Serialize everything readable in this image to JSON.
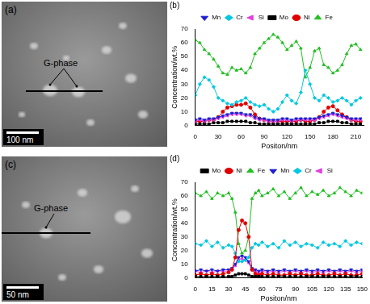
{
  "images": [
    {
      "label": "(a)",
      "annotation": "G-phase",
      "scale_bar": "100 nm"
    },
    {
      "label": "(c)",
      "annotation": "G-phase",
      "scale_bar": "50 nm"
    }
  ],
  "chart_data": [
    {
      "type": "line",
      "title": "(b)",
      "x_label": "Positon/nm",
      "y_label": "Concentration/wt.%",
      "xlim": [
        0,
        220
      ],
      "xticks": [
        0,
        30,
        60,
        90,
        120,
        150,
        180,
        210
      ],
      "ylim": [
        0,
        70
      ],
      "yticks": [
        0,
        10,
        20,
        30,
        40,
        50,
        60,
        70
      ],
      "legend": "top",
      "grid": false,
      "x": [
        0,
        6,
        12,
        18,
        24,
        30,
        36,
        42,
        48,
        54,
        60,
        66,
        72,
        78,
        84,
        90,
        96,
        102,
        108,
        114,
        120,
        126,
        132,
        138,
        144,
        150,
        156,
        162,
        168,
        174,
        180,
        186,
        192,
        198,
        204,
        210,
        216
      ],
      "series": [
        {
          "name": "Mn",
          "color": "#1f1fd0",
          "marker": "triangle-down",
          "values": [
            4,
            5,
            4,
            5,
            5,
            6,
            7,
            8,
            9,
            9,
            9,
            8,
            8,
            6,
            5,
            5,
            4,
            4,
            4,
            5,
            5,
            4,
            5,
            5,
            5,
            5,
            5,
            6,
            7,
            8,
            9,
            8,
            7,
            6,
            5,
            5,
            5
          ]
        },
        {
          "name": "Cr",
          "color": "#00c8e0",
          "marker": "diamond",
          "values": [
            22,
            30,
            35,
            33,
            28,
            20,
            18,
            16,
            15,
            17,
            18,
            20,
            17,
            15,
            14,
            15,
            12,
            10,
            12,
            17,
            22,
            18,
            16,
            24,
            40,
            30,
            20,
            18,
            22,
            20,
            17,
            18,
            20,
            18,
            15,
            18,
            20
          ]
        },
        {
          "name": "Si",
          "color": "#e040e0",
          "marker": "triangle-left",
          "values": [
            3,
            4,
            3,
            4,
            4,
            5,
            6,
            7,
            8,
            8,
            8,
            7,
            7,
            5,
            4,
            4,
            3,
            3,
            3,
            4,
            4,
            3,
            4,
            4,
            4,
            4,
            4,
            5,
            6,
            7,
            8,
            7,
            6,
            5,
            4,
            4,
            4
          ]
        },
        {
          "name": "Mo",
          "color": "#000000",
          "marker": "square",
          "values": [
            1,
            1,
            1,
            1,
            2,
            2,
            2,
            3,
            3,
            3,
            3,
            3,
            2,
            2,
            1,
            1,
            1,
            1,
            1,
            1,
            1,
            1,
            1,
            1,
            1,
            1,
            1,
            2,
            2,
            3,
            3,
            3,
            2,
            2,
            1,
            1,
            1
          ]
        },
        {
          "name": "Ni",
          "color": "#e00000",
          "marker": "circle",
          "values": [
            3,
            3,
            3,
            4,
            4,
            6,
            10,
            13,
            14,
            15,
            15,
            16,
            13,
            8,
            5,
            4,
            3,
            3,
            3,
            3,
            3,
            3,
            3,
            4,
            3,
            3,
            4,
            6,
            10,
            13,
            14,
            11,
            8,
            6,
            4,
            3,
            3
          ]
        },
        {
          "name": "Fe",
          "color": "#20c020",
          "marker": "triangle",
          "values": [
            62,
            60,
            55,
            52,
            48,
            43,
            38,
            37,
            42,
            40,
            41,
            38,
            42,
            52,
            56,
            60,
            63,
            66,
            64,
            60,
            55,
            58,
            61,
            56,
            35,
            42,
            54,
            56,
            44,
            42,
            38,
            40,
            44,
            52,
            58,
            59,
            55
          ]
        }
      ]
    },
    {
      "type": "line",
      "title": "(d)",
      "x_label": "Positon/nm",
      "y_label": "Concentration/wt.%",
      "xlim": [
        0,
        150
      ],
      "xticks": [
        0,
        15,
        30,
        45,
        60,
        75,
        90,
        105,
        120,
        135,
        150
      ],
      "ylim": [
        0,
        70
      ],
      "yticks": [
        0,
        10,
        20,
        30,
        40,
        50,
        60,
        70
      ],
      "legend": "top",
      "grid": false,
      "x": [
        0,
        5,
        10,
        15,
        20,
        25,
        30,
        33,
        36,
        39,
        42,
        45,
        48,
        51,
        54,
        57,
        60,
        65,
        70,
        75,
        80,
        85,
        90,
        95,
        100,
        105,
        110,
        115,
        120,
        125,
        130,
        135,
        140,
        145,
        150
      ],
      "series": [
        {
          "name": "Mo",
          "color": "#000000",
          "marker": "square",
          "values": [
            1,
            1,
            1,
            1,
            1,
            1,
            1,
            1,
            2,
            3,
            3,
            3,
            2,
            1,
            1,
            1,
            1,
            1,
            1,
            1,
            1,
            1,
            1,
            1,
            1,
            1,
            1,
            1,
            1,
            1,
            1,
            1,
            1,
            1,
            1
          ]
        },
        {
          "name": "Ni",
          "color": "#e00000",
          "marker": "circle",
          "values": [
            2,
            3,
            2,
            3,
            2,
            3,
            4,
            6,
            15,
            35,
            42,
            40,
            30,
            6,
            3,
            2,
            3,
            2,
            3,
            2,
            2,
            3,
            2,
            3,
            2,
            2,
            3,
            2,
            2,
            3,
            2,
            3,
            2,
            2,
            3
          ]
        },
        {
          "name": "Fe",
          "color": "#20c020",
          "marker": "triangle",
          "values": [
            62,
            60,
            63,
            58,
            62,
            60,
            62,
            58,
            48,
            25,
            18,
            20,
            30,
            58,
            62,
            64,
            60,
            62,
            65,
            60,
            63,
            58,
            62,
            66,
            60,
            63,
            61,
            64,
            60,
            62,
            66,
            63,
            60,
            64,
            62
          ]
        },
        {
          "name": "Mn",
          "color": "#1f1fd0",
          "marker": "triangle-down",
          "values": [
            5,
            6,
            5,
            6,
            5,
            6,
            6,
            7,
            10,
            15,
            16,
            15,
            12,
            7,
            6,
            5,
            6,
            5,
            6,
            5,
            6,
            5,
            6,
            5,
            6,
            5,
            6,
            5,
            6,
            5,
            6,
            5,
            6,
            5,
            6
          ]
        },
        {
          "name": "Cr",
          "color": "#00c8e0",
          "marker": "diamond",
          "values": [
            25,
            24,
            27,
            23,
            26,
            22,
            24,
            23,
            18,
            12,
            12,
            13,
            15,
            22,
            25,
            24,
            26,
            23,
            25,
            22,
            27,
            24,
            26,
            23,
            25,
            24,
            22,
            26,
            24,
            25,
            23,
            27,
            24,
            26,
            25
          ]
        },
        {
          "name": "Si",
          "color": "#e040e0",
          "marker": "triangle-left",
          "values": [
            5,
            4,
            5,
            4,
            5,
            5,
            5,
            6,
            9,
            13,
            14,
            13,
            11,
            6,
            5,
            4,
            5,
            4,
            5,
            4,
            5,
            4,
            5,
            4,
            5,
            4,
            5,
            4,
            5,
            4,
            5,
            4,
            5,
            4,
            5
          ]
        }
      ]
    }
  ]
}
